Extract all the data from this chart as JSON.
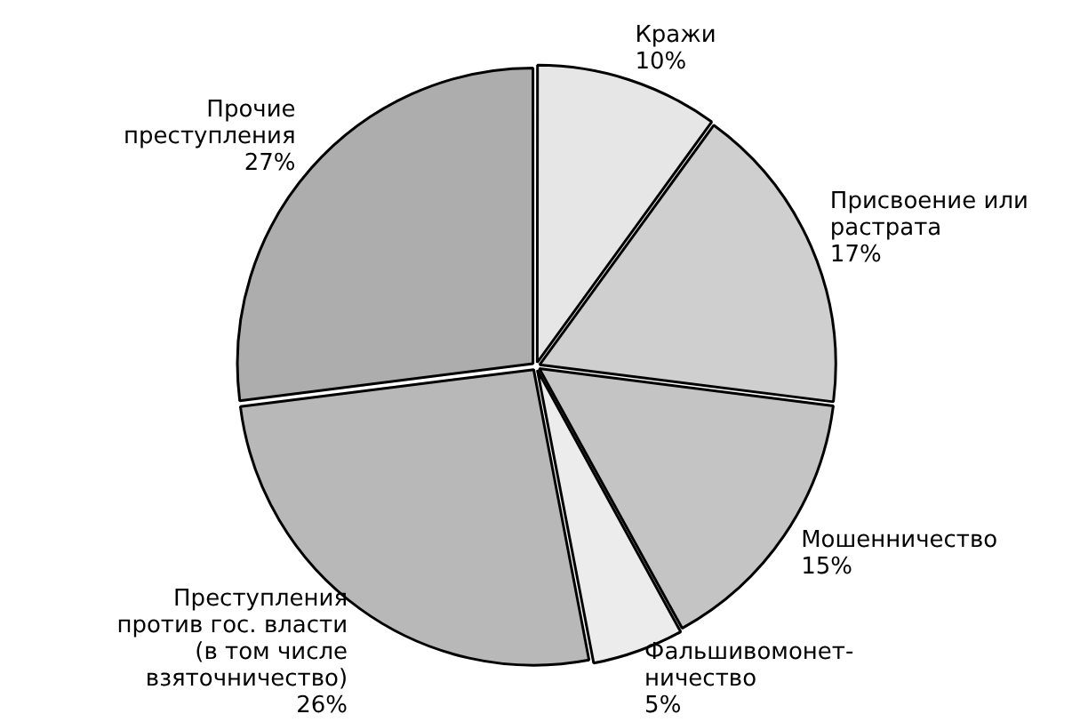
{
  "chart_data": {
    "type": "pie",
    "categories": [
      "Кражи",
      "Присвоение или\nрастрата",
      "Мошенничество",
      "Фальшивомонет-\nничество",
      "Преступления\nпротив гос. власти\n(в том числе\nвзяточничество)",
      "Прочие\nпреступления"
    ],
    "values": [
      10,
      17,
      15,
      5,
      26,
      27
    ],
    "value_labels": [
      "10%",
      "17%",
      "15%",
      "5%",
      "26%",
      "27%"
    ],
    "colors": [
      "#e6e6e6",
      "#cfcfcf",
      "#c4c4c4",
      "#ececec",
      "#b8b8b8",
      "#adadad"
    ]
  }
}
